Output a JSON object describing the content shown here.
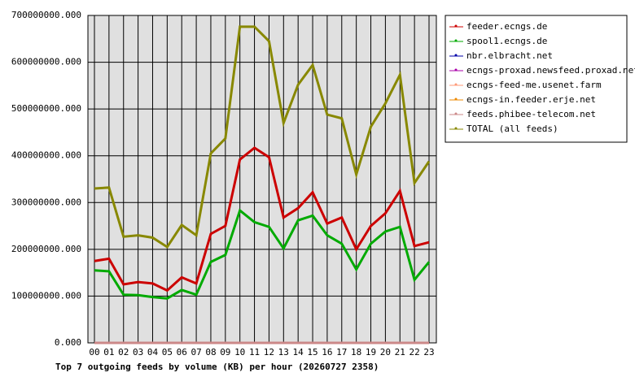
{
  "chart_data": {
    "type": "line",
    "title": "Top 7 outgoing feeds by volume (KB) per hour (20260727 2358)",
    "categories": [
      "00",
      "01",
      "02",
      "03",
      "04",
      "05",
      "06",
      "07",
      "08",
      "09",
      "10",
      "11",
      "12",
      "13",
      "14",
      "15",
      "16",
      "17",
      "18",
      "19",
      "20",
      "21",
      "22",
      "23"
    ],
    "ylim": [
      0,
      700000000
    ],
    "yticks": [
      {
        "value": 0,
        "label": "0.000"
      },
      {
        "value": 100000000,
        "label": "100000000.000"
      },
      {
        "value": 200000000,
        "label": "200000000.000"
      },
      {
        "value": 300000000,
        "label": "300000000.000"
      },
      {
        "value": 400000000,
        "label": "400000000.000"
      },
      {
        "value": 500000000,
        "label": "500000000.000"
      },
      {
        "value": 600000000,
        "label": "600000000.000"
      },
      {
        "value": 700000000,
        "label": "700000000.000"
      }
    ],
    "grid": true,
    "legend": "right",
    "series": [
      {
        "name": "feeder.ecngs.de",
        "color": "#cc0000",
        "values": [
          175000000,
          180000000,
          125000000,
          130000000,
          127000000,
          112000000,
          140000000,
          127000000,
          233000000,
          250000000,
          392000000,
          417000000,
          397000000,
          268000000,
          288000000,
          322000000,
          255000000,
          268000000,
          200000000,
          250000000,
          277000000,
          325000000,
          207000000,
          215000000
        ]
      },
      {
        "name": "spool1.ecngs.de",
        "color": "#00aa00",
        "values": [
          155000000,
          153000000,
          103000000,
          102000000,
          98000000,
          95000000,
          113000000,
          103000000,
          173000000,
          188000000,
          283000000,
          258000000,
          248000000,
          202000000,
          262000000,
          272000000,
          230000000,
          212000000,
          157000000,
          212000000,
          238000000,
          248000000,
          135000000,
          173000000
        ]
      },
      {
        "name": "nbr.elbracht.net",
        "color": "#0000aa",
        "values": [
          0,
          0,
          0,
          0,
          0,
          0,
          0,
          0,
          0,
          0,
          0,
          0,
          0,
          0,
          0,
          0,
          0,
          0,
          0,
          0,
          0,
          0,
          0,
          0
        ]
      },
      {
        "name": "ecngs-proxad.newsfeed.proxad.net",
        "color": "#aa00aa",
        "values": [
          0,
          0,
          0,
          0,
          0,
          0,
          0,
          0,
          0,
          0,
          0,
          0,
          0,
          0,
          0,
          0,
          0,
          0,
          0,
          0,
          0,
          0,
          0,
          0
        ]
      },
      {
        "name": "ecngs-feed-me.usenet.farm",
        "color": "#ff9977",
        "values": [
          0,
          0,
          0,
          0,
          0,
          0,
          0,
          0,
          0,
          0,
          0,
          0,
          0,
          0,
          0,
          0,
          0,
          0,
          0,
          0,
          0,
          0,
          0,
          0
        ]
      },
      {
        "name": "ecngs-in.feeder.erje.net",
        "color": "#ee8800",
        "values": [
          0,
          0,
          0,
          0,
          0,
          0,
          0,
          0,
          0,
          0,
          0,
          0,
          0,
          0,
          0,
          0,
          0,
          0,
          0,
          0,
          0,
          0,
          0,
          0
        ]
      },
      {
        "name": "feeds.phibee-telecom.net",
        "color": "#cc8888",
        "values": [
          0,
          0,
          0,
          0,
          0,
          0,
          0,
          0,
          0,
          0,
          0,
          0,
          0,
          0,
          0,
          0,
          0,
          0,
          0,
          0,
          0,
          0,
          0,
          0
        ]
      },
      {
        "name": "TOTAL (all feeds)",
        "color": "#888800",
        "values": [
          330000000,
          332000000,
          227000000,
          230000000,
          225000000,
          205000000,
          252000000,
          230000000,
          405000000,
          437000000,
          676000000,
          676000000,
          645000000,
          470000000,
          552000000,
          594000000,
          488000000,
          480000000,
          360000000,
          462000000,
          512000000,
          573000000,
          342000000,
          388000000
        ]
      }
    ]
  }
}
